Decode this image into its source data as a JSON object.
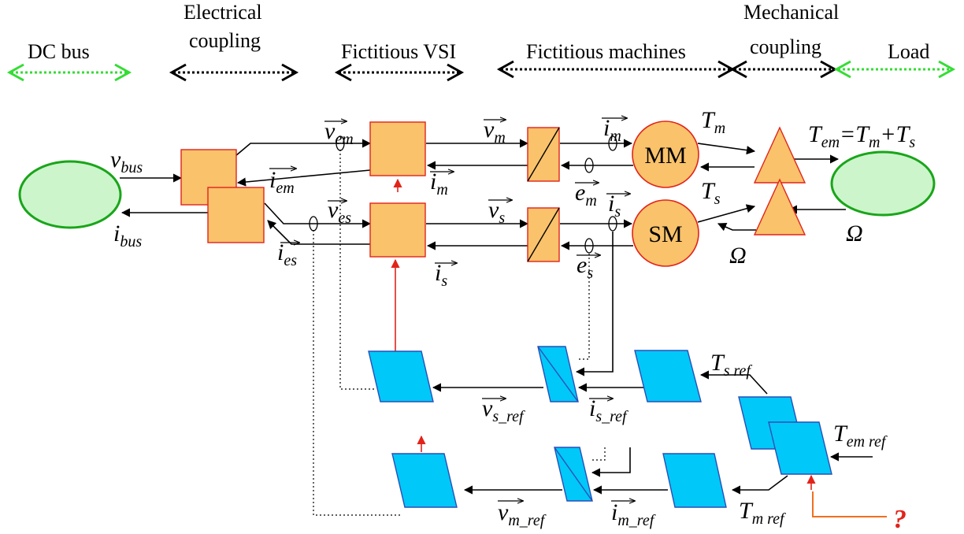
{
  "headers": {
    "dc_bus": "DC  bus",
    "electrical_coupling_1": "Electrical",
    "electrical_coupling_2": "coupling",
    "fictitious_vsi": "Fictitious VSI",
    "fictitious_machines": "Fictitious machines",
    "mechanical_coupling_1": "Mechanical",
    "mechanical_coupling_2": "coupling",
    "load": "Load"
  },
  "machines": {
    "mm": "MM",
    "sm": "SM"
  },
  "vars": {
    "v_bus": "v",
    "v_bus_sub": "bus",
    "i_bus": "i",
    "i_bus_sub": "bus",
    "v_em": "v",
    "v_em_sub": "em",
    "i_em": "i",
    "i_em_sub": "em",
    "v_es": "v",
    "v_es_sub": "es",
    "i_es": "i",
    "i_es_sub": "es",
    "v_m": "v",
    "v_m_sub": "m",
    "i_m_low": "i",
    "i_m_low_sub": "m",
    "v_s": "v",
    "v_s_sub": "s",
    "i_s_low": "i",
    "i_s_low_sub": "s",
    "i_m": "i",
    "i_m_sub": "m",
    "e_m": "e",
    "e_m_sub": "m",
    "i_s": "i",
    "i_s_sub": "s",
    "e_s": "e",
    "e_s_sub": "s",
    "t_m": "T",
    "t_m_sub": "m",
    "t_s": "T",
    "t_s_sub": "s",
    "omega_mid": "Ω",
    "omega_right": "Ω",
    "eq_t": "T",
    "eq_t_sub": "em",
    "eq_eq": "=",
    "eq_tm": "T",
    "eq_tm_sub": "m",
    "eq_plus": "+",
    "eq_ts": "T",
    "eq_ts_sub": "s",
    "v_s_ref": "v",
    "v_s_ref_sub": "s_ref",
    "i_s_ref": "i",
    "i_s_ref_sub": "s_ref",
    "t_s_ref": "T",
    "t_s_ref_sub": "s  ref",
    "t_em_ref": "T",
    "t_em_ref_sub": "em  ref",
    "v_m_ref": "v",
    "v_m_ref_sub": "m_ref",
    "i_m_ref": "i",
    "i_m_ref_sub": "m_ref",
    "t_m_ref": "T",
    "t_m_ref_sub": "m  ref",
    "question": "?"
  },
  "colors": {
    "block_fill": "#f9c26b",
    "block_border": "#e2231a",
    "source_fill": "#ccf5cc",
    "source_border": "#1aa51a",
    "control_fill": "#00c8f8",
    "control_border": "#2a4fb8",
    "green_arrow": "#33dd33",
    "red_arrow": "#e2231a",
    "orange_line": "#f07020"
  }
}
